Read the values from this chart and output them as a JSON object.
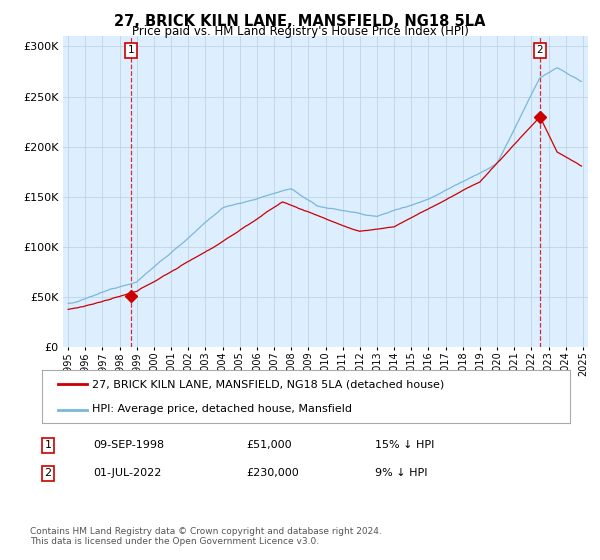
{
  "title": "27, BRICK KILN LANE, MANSFIELD, NG18 5LA",
  "subtitle": "Price paid vs. HM Land Registry's House Price Index (HPI)",
  "legend_line1": "27, BRICK KILN LANE, MANSFIELD, NG18 5LA (detached house)",
  "legend_line2": "HPI: Average price, detached house, Mansfield",
  "annotation1_date": "09-SEP-1998",
  "annotation1_price": 51000,
  "annotation1_hpi": "15% ↓ HPI",
  "annotation2_date": "01-JUL-2022",
  "annotation2_price": 230000,
  "annotation2_hpi": "9% ↓ HPI",
  "footnote": "Contains HM Land Registry data © Crown copyright and database right 2024.\nThis data is licensed under the Open Government Licence v3.0.",
  "hpi_color": "#7ab8d9",
  "price_color": "#cc0000",
  "annotation_color": "#cc0000",
  "background_color": "#ffffff",
  "plot_bg_color": "#ddeeff",
  "grid_color": "#b8cfe0",
  "ylim": [
    0,
    310000
  ],
  "yticks": [
    0,
    50000,
    100000,
    150000,
    200000,
    250000,
    300000
  ],
  "xlim_min": 1994.7,
  "xlim_max": 2025.3
}
